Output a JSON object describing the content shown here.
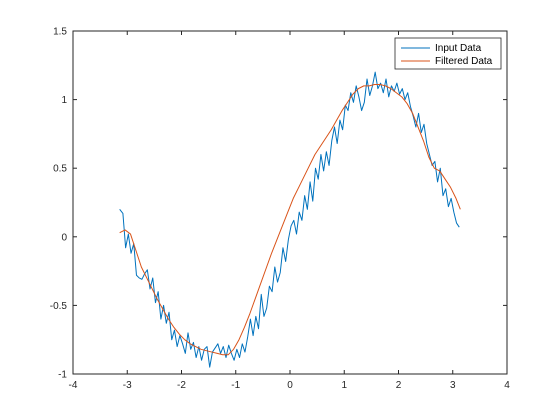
{
  "chart_data": {
    "type": "line",
    "title": "",
    "xlabel": "",
    "ylabel": "",
    "xlim": [
      -4,
      4
    ],
    "ylim": [
      -1,
      1.5
    ],
    "x_ticks": [
      -4,
      -3,
      -2,
      -1,
      0,
      1,
      2,
      3,
      4
    ],
    "y_ticks": [
      -1,
      -0.5,
      0,
      0.5,
      1,
      1.5
    ],
    "x_tick_labels": [
      "-4",
      "-3",
      "-2",
      "-1",
      "0",
      "1",
      "2",
      "3",
      "4"
    ],
    "y_tick_labels": [
      "-1",
      "-0.5",
      "0",
      "0.5",
      "1",
      "1.5"
    ],
    "grid": false,
    "legend_position": "top-right",
    "series": [
      {
        "name": "Input Data",
        "color": "#0072BD",
        "x": [
          -3.14,
          -3.08,
          -3.03,
          -2.98,
          -2.93,
          -2.88,
          -2.83,
          -2.78,
          -2.73,
          -2.68,
          -2.63,
          -2.58,
          -2.53,
          -2.48,
          -2.43,
          -2.38,
          -2.33,
          -2.28,
          -2.23,
          -2.18,
          -2.13,
          -2.08,
          -2.03,
          -1.98,
          -1.93,
          -1.88,
          -1.83,
          -1.78,
          -1.73,
          -1.68,
          -1.63,
          -1.58,
          -1.53,
          -1.48,
          -1.43,
          -1.38,
          -1.33,
          -1.28,
          -1.23,
          -1.18,
          -1.13,
          -1.08,
          -1.03,
          -0.98,
          -0.93,
          -0.88,
          -0.83,
          -0.78,
          -0.73,
          -0.68,
          -0.63,
          -0.58,
          -0.53,
          -0.48,
          -0.43,
          -0.38,
          -0.33,
          -0.28,
          -0.23,
          -0.18,
          -0.13,
          -0.08,
          -0.03,
          0.02,
          0.07,
          0.12,
          0.17,
          0.22,
          0.27,
          0.32,
          0.37,
          0.42,
          0.47,
          0.52,
          0.57,
          0.62,
          0.67,
          0.72,
          0.77,
          0.82,
          0.87,
          0.92,
          0.97,
          1.02,
          1.07,
          1.12,
          1.17,
          1.22,
          1.27,
          1.32,
          1.37,
          1.42,
          1.47,
          1.52,
          1.57,
          1.62,
          1.67,
          1.72,
          1.77,
          1.82,
          1.87,
          1.92,
          1.97,
          2.02,
          2.07,
          2.12,
          2.17,
          2.22,
          2.27,
          2.32,
          2.37,
          2.42,
          2.47,
          2.52,
          2.57,
          2.62,
          2.67,
          2.72,
          2.77,
          2.82,
          2.87,
          2.92,
          2.97,
          3.02,
          3.07,
          3.12
        ],
        "y": [
          0.2,
          0.17,
          -0.08,
          0.02,
          -0.12,
          -0.05,
          -0.28,
          -0.3,
          -0.31,
          -0.27,
          -0.24,
          -0.38,
          -0.3,
          -0.48,
          -0.4,
          -0.6,
          -0.5,
          -0.63,
          -0.55,
          -0.75,
          -0.68,
          -0.8,
          -0.72,
          -0.78,
          -0.85,
          -0.7,
          -0.82,
          -0.77,
          -0.88,
          -0.8,
          -0.9,
          -0.82,
          -0.8,
          -0.95,
          -0.84,
          -0.81,
          -0.78,
          -0.85,
          -0.8,
          -0.88,
          -0.79,
          -0.85,
          -0.9,
          -0.82,
          -0.88,
          -0.78,
          -0.84,
          -0.73,
          -0.6,
          -0.72,
          -0.58,
          -0.67,
          -0.42,
          -0.58,
          -0.52,
          -0.36,
          -0.4,
          -0.22,
          -0.33,
          -0.26,
          -0.08,
          -0.18,
          -0.02,
          0.08,
          0.12,
          0.02,
          0.18,
          0.12,
          0.3,
          0.2,
          0.4,
          0.26,
          0.5,
          0.42,
          0.6,
          0.48,
          0.62,
          0.52,
          0.7,
          0.8,
          0.68,
          0.85,
          0.78,
          0.96,
          0.92,
          1.05,
          0.98,
          1.1,
          1.02,
          0.92,
          0.98,
          1.15,
          1.03,
          1.1,
          1.2,
          1.08,
          1.12,
          1.05,
          1.15,
          1.02,
          1.1,
          1.06,
          1.12,
          1.04,
          1.08,
          1.0,
          1.05,
          0.95,
          0.88,
          0.8,
          0.9,
          0.76,
          0.82,
          0.68,
          0.6,
          0.52,
          0.55,
          0.4,
          0.5,
          0.3,
          0.35,
          0.22,
          0.28,
          0.18,
          0.1,
          0.07
        ],
        "data_note": "values estimated from rendered plot"
      },
      {
        "name": "Filtered Data",
        "color": "#D95319",
        "x": [
          -3.14,
          -3.04,
          -2.94,
          -2.84,
          -2.74,
          -2.64,
          -2.54,
          -2.44,
          -2.34,
          -2.24,
          -2.14,
          -2.04,
          -1.94,
          -1.84,
          -1.74,
          -1.64,
          -1.54,
          -1.44,
          -1.34,
          -1.24,
          -1.14,
          -1.04,
          -0.94,
          -0.84,
          -0.74,
          -0.64,
          -0.54,
          -0.44,
          -0.34,
          -0.24,
          -0.14,
          -0.04,
          0.06,
          0.16,
          0.26,
          0.36,
          0.46,
          0.56,
          0.66,
          0.76,
          0.86,
          0.96,
          1.06,
          1.16,
          1.26,
          1.36,
          1.46,
          1.56,
          1.66,
          1.76,
          1.86,
          1.96,
          2.06,
          2.16,
          2.26,
          2.36,
          2.46,
          2.56,
          2.66,
          2.76,
          2.86,
          2.96,
          3.06,
          3.14
        ],
        "y": [
          0.03,
          0.05,
          0.02,
          -0.1,
          -0.22,
          -0.3,
          -0.38,
          -0.46,
          -0.53,
          -0.6,
          -0.66,
          -0.71,
          -0.75,
          -0.78,
          -0.8,
          -0.82,
          -0.83,
          -0.84,
          -0.85,
          -0.86,
          -0.86,
          -0.82,
          -0.75,
          -0.66,
          -0.56,
          -0.45,
          -0.34,
          -0.23,
          -0.12,
          -0.02,
          0.08,
          0.18,
          0.28,
          0.36,
          0.44,
          0.52,
          0.6,
          0.66,
          0.72,
          0.78,
          0.85,
          0.92,
          0.98,
          1.04,
          1.08,
          1.1,
          1.1,
          1.11,
          1.11,
          1.1,
          1.08,
          1.05,
          1.02,
          0.97,
          0.9,
          0.8,
          0.7,
          0.58,
          0.5,
          0.48,
          0.42,
          0.36,
          0.28,
          0.2
        ]
      }
    ]
  }
}
